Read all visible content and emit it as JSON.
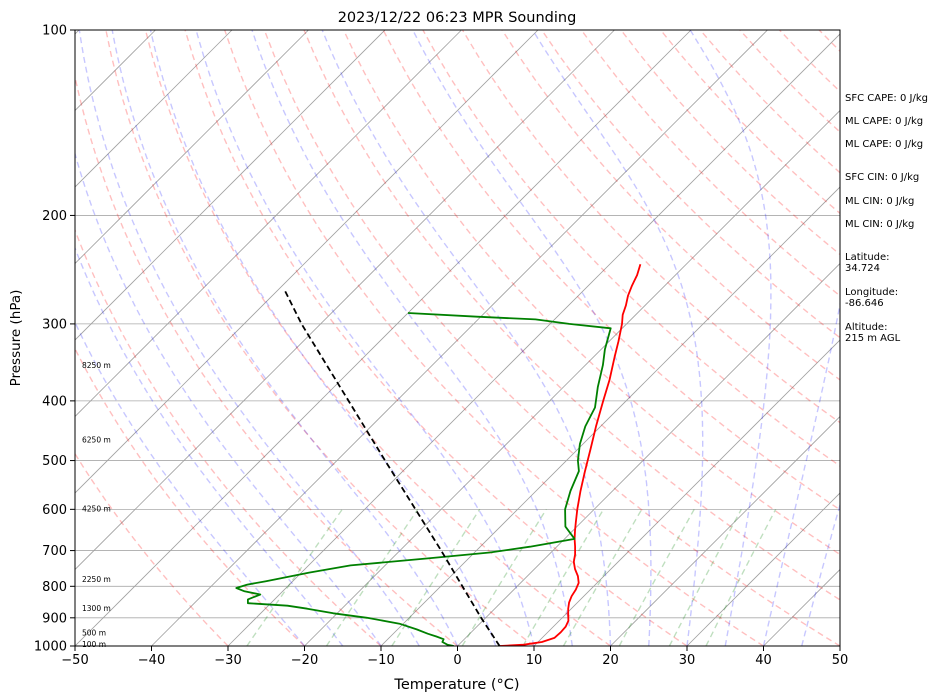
{
  "chart_data": {
    "type": "line",
    "title": "2023/12/22 06:23 MPR Sounding",
    "xlabel": "Temperature (°C)",
    "ylabel": "Pressure (hPa)",
    "xlim": [
      -50,
      50
    ],
    "ylim": [
      1000,
      100
    ],
    "y_scale": "log",
    "grid": true,
    "x_ticks": [
      -50,
      -40,
      -30,
      -20,
      -10,
      0,
      10,
      20,
      30,
      40,
      50
    ],
    "y_ticks": [
      100,
      200,
      300,
      400,
      500,
      600,
      700,
      800,
      900,
      1000
    ],
    "height_labels": [
      {
        "text": "8250 m",
        "p": 350
      },
      {
        "text": "6250 m",
        "p": 462
      },
      {
        "text": "4250 m",
        "p": 598
      },
      {
        "text": "2250 m",
        "p": 778
      },
      {
        "text": "1300 m",
        "p": 868
      },
      {
        "text": "500 m",
        "p": 951
      },
      {
        "text": "100 m",
        "p": 992
      }
    ],
    "series": [
      {
        "key": "temperature",
        "color": "#ff0000",
        "points": [
          [
            1000,
            5.5
          ],
          [
            995,
            8.5
          ],
          [
            985,
            10.5
          ],
          [
            970,
            11.6
          ],
          [
            950,
            11.7
          ],
          [
            930,
            11.6
          ],
          [
            910,
            11.2
          ],
          [
            890,
            10.4
          ],
          [
            870,
            9.6
          ],
          [
            850,
            8.9
          ],
          [
            830,
            8.4
          ],
          [
            810,
            8.1
          ],
          [
            790,
            7.6
          ],
          [
            770,
            6.6
          ],
          [
            750,
            5.3
          ],
          [
            730,
            4.2
          ],
          [
            710,
            3.4
          ],
          [
            690,
            2.4
          ],
          [
            670,
            1.3
          ],
          [
            650,
            0.3
          ],
          [
            630,
            -0.7
          ],
          [
            600,
            -2.2
          ],
          [
            560,
            -4.2
          ],
          [
            520,
            -6.2
          ],
          [
            480,
            -8.3
          ],
          [
            440,
            -10.6
          ],
          [
            400,
            -13.0
          ],
          [
            370,
            -14.9
          ],
          [
            340,
            -17.2
          ],
          [
            320,
            -18.8
          ],
          [
            300,
            -20.6
          ],
          [
            290,
            -21.7
          ],
          [
            280,
            -22.5
          ],
          [
            270,
            -23.5
          ],
          [
            260,
            -24.3
          ],
          [
            250,
            -25.0
          ],
          [
            240,
            -26.0
          ]
        ]
      },
      {
        "key": "dewpoint",
        "color": "#008000",
        "points": [
          [
            1000,
            -0.5
          ],
          [
            995,
            -1.5
          ],
          [
            985,
            -2.5
          ],
          [
            975,
            -2.7
          ],
          [
            965,
            -4.0
          ],
          [
            955,
            -5.5
          ],
          [
            940,
            -7.5
          ],
          [
            920,
            -10.5
          ],
          [
            900,
            -15.5
          ],
          [
            885,
            -20.5
          ],
          [
            870,
            -24.5
          ],
          [
            860,
            -27.5
          ],
          [
            852,
            -33.0
          ],
          [
            840,
            -33.5
          ],
          [
            825,
            -32.5
          ],
          [
            815,
            -35.0
          ],
          [
            805,
            -36.5
          ],
          [
            795,
            -35.5
          ],
          [
            785,
            -33.5
          ],
          [
            760,
            -29.0
          ],
          [
            740,
            -24.5
          ],
          [
            720,
            -15.0
          ],
          [
            705,
            -8.0
          ],
          [
            690,
            -3.5
          ],
          [
            670,
            1.3
          ],
          [
            640,
            -1.5
          ],
          [
            600,
            -3.8
          ],
          [
            560,
            -5.5
          ],
          [
            520,
            -7.0
          ],
          [
            500,
            -8.5
          ],
          [
            470,
            -10.4
          ],
          [
            440,
            -12.0
          ],
          [
            410,
            -13.2
          ],
          [
            380,
            -15.5
          ],
          [
            350,
            -17.7
          ],
          [
            330,
            -19.5
          ],
          [
            305,
            -21.5
          ],
          [
            300,
            -27.5
          ],
          [
            295,
            -32.5
          ],
          [
            292,
            -40.5
          ],
          [
            288,
            -50.0
          ]
        ]
      },
      {
        "key": "parcel",
        "color": "#000000",
        "points": [
          [
            1000,
            5.5
          ],
          [
            900,
            -0.6
          ],
          [
            700,
            -14.6
          ],
          [
            500,
            -33.7
          ],
          [
            300,
            -62.5
          ],
          [
            265,
            -69.0
          ]
        ]
      }
    ],
    "reference_lines": {
      "isotherm_color": "#a0a0a0",
      "dry_adiabat_color": "#ff0000",
      "moist_adiabat_color": "#0000ff",
      "mixing_ratio_color": "#008000"
    }
  },
  "panel": {
    "sfc_cape": "SFC CAPE: 0 J/kg",
    "ml_cape_1": "ML CAPE: 0 J/kg",
    "ml_cape_2": "ML CAPE: 0 J/kg",
    "sfc_cin": "SFC CIN: 0 J/kg",
    "ml_cin_1": "ML CIN: 0 J/kg",
    "ml_cin_2": "ML CIN: 0 J/kg",
    "latitude": "Latitude:\n34.724",
    "longitude": "Longitude:\n-86.646",
    "altitude": "Altitude:\n215 m AGL"
  }
}
